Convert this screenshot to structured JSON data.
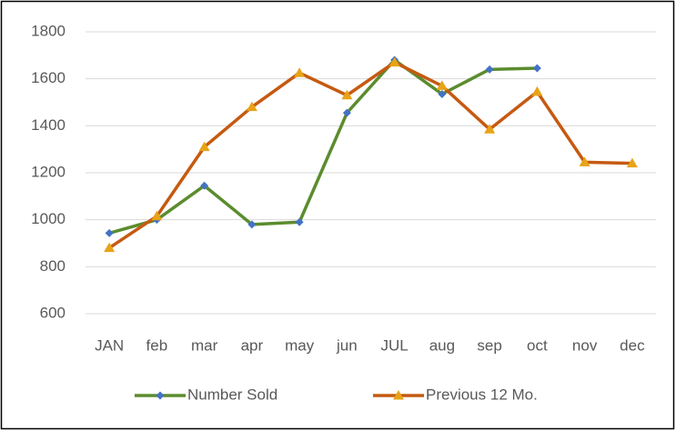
{
  "chart_data": {
    "type": "line",
    "categories": [
      "JAN",
      "feb",
      "mar",
      "apr",
      "may",
      "jun",
      "JUL",
      "aug",
      "sep",
      "oct",
      "nov",
      "dec"
    ],
    "series": [
      {
        "name": "Number Sold",
        "color": "#5b8c2e",
        "marker": "diamond",
        "marker_color": "#4472c4",
        "values": [
          943,
          1000,
          1145,
          980,
          990,
          1455,
          1680,
          1535,
          1640,
          1645,
          null,
          null
        ]
      },
      {
        "name": "Previous 12 Mo.",
        "color": "#c55a11",
        "marker": "triangle",
        "marker_color": "#e8a317",
        "values": [
          880,
          1015,
          1310,
          1480,
          1625,
          1530,
          1670,
          1570,
          1385,
          1545,
          1245,
          1240
        ]
      }
    ],
    "ylim": [
      600,
      1800
    ],
    "yticks": [
      600,
      800,
      1000,
      1200,
      1400,
      1600,
      1800
    ],
    "grid": true,
    "legend": "bottom"
  }
}
